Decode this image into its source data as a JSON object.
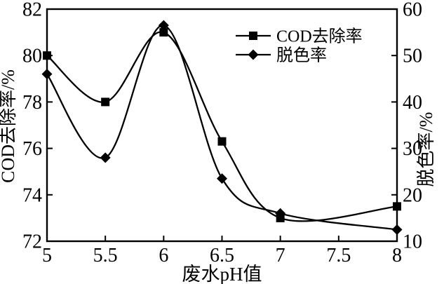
{
  "figure": {
    "background": "#ffffff",
    "foreground": "#000000"
  },
  "chart_data": {
    "type": "line",
    "smooth": true,
    "x": [
      5,
      5.5,
      6,
      6.5,
      7,
      8
    ],
    "xlabel": "废水pH值",
    "xlim": [
      5,
      8
    ],
    "x_ticks": [
      5,
      5.5,
      6,
      6.5,
      7,
      7.5,
      8
    ],
    "x_tick_labels": [
      "5",
      "5.5",
      "6",
      "6.5",
      "7",
      "7.5",
      "8"
    ],
    "left_axis": {
      "label": "COD去除率/%",
      "min": 72,
      "max": 82,
      "ticks": [
        72,
        74,
        76,
        78,
        80,
        82
      ],
      "tick_labels": [
        "72",
        "74",
        "76",
        "78",
        "80",
        "82"
      ]
    },
    "right_axis": {
      "label": "脱色率/%",
      "min": 10,
      "max": 60,
      "ticks": [
        10,
        20,
        30,
        40,
        50,
        60
      ],
      "tick_labels": [
        "10",
        "20",
        "30",
        "40",
        "50",
        "60"
      ]
    },
    "series": [
      {
        "name": "COD去除率",
        "axis": "left",
        "marker": "square",
        "color": "#000000",
        "values": [
          80.0,
          78.0,
          81.0,
          76.3,
          73.0,
          73.5
        ]
      },
      {
        "name": "脱色率",
        "axis": "right",
        "marker": "diamond",
        "color": "#000000",
        "values": [
          46,
          28,
          56.5,
          23.5,
          16,
          12.5
        ]
      }
    ],
    "legend": {
      "position": "inside-top-center-right",
      "entries": [
        "COD去除率",
        "脱色率"
      ]
    },
    "grid": false
  }
}
